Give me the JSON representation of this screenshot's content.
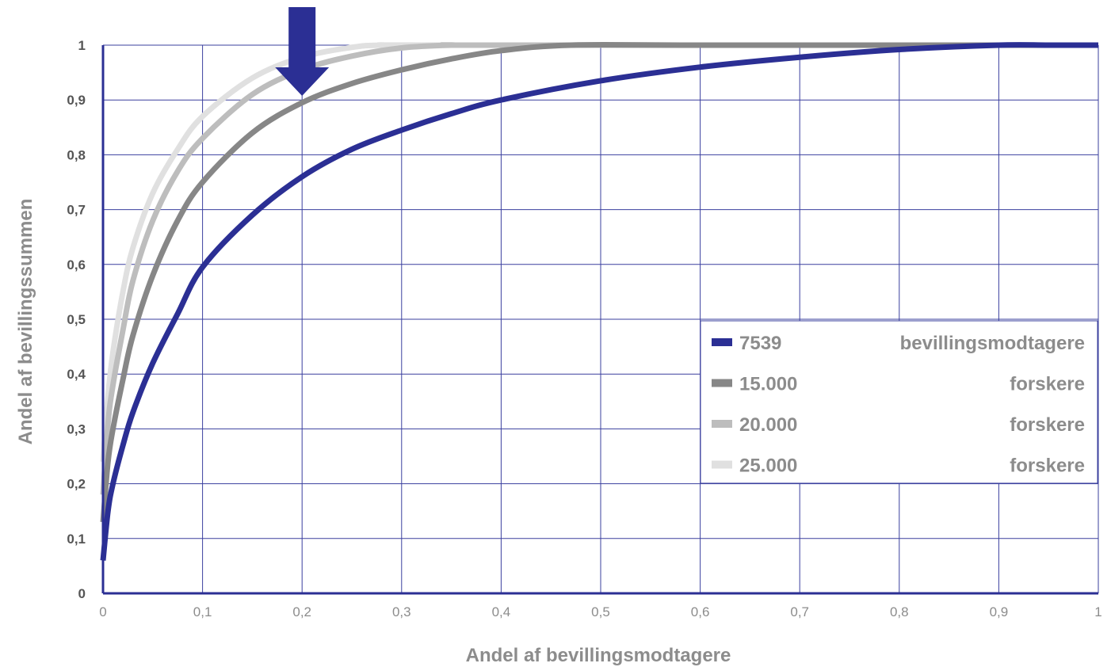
{
  "chart_data": {
    "type": "line",
    "xlabel": "Andel af bevillingsmodtagere",
    "ylabel": "Andel af bevillingssummen",
    "xlim": [
      0,
      1
    ],
    "ylim": [
      0,
      1
    ],
    "x_ticks": [
      "0",
      "0,1",
      "0,2",
      "0,3",
      "0,4",
      "0,5",
      "0,6",
      "0,7",
      "0,8",
      "0,9",
      "1"
    ],
    "y_ticks": [
      "0",
      "0,1",
      "0,2",
      "0,3",
      "0,4",
      "0,5",
      "0,6",
      "0,7",
      "0,8",
      "0,9",
      "1"
    ],
    "grid": true,
    "legend_position": "center-right",
    "annotation": {
      "type": "arrow",
      "at_x": 0.2,
      "color": "#2b2f94"
    },
    "series": [
      {
        "name": "7539",
        "suffix": "bevillingsmodtagere",
        "color": "#2b2f94",
        "text_color": "#8c8c8c",
        "x": [
          0,
          0.005,
          0.01,
          0.02,
          0.03,
          0.05,
          0.075,
          0.1,
          0.15,
          0.2,
          0.25,
          0.3,
          0.35,
          0.4,
          0.5,
          0.6,
          0.7,
          0.8,
          0.9,
          0.95,
          1
        ],
        "y": [
          0.06,
          0.15,
          0.2,
          0.27,
          0.33,
          0.42,
          0.51,
          0.595,
          0.69,
          0.76,
          0.81,
          0.845,
          0.875,
          0.9,
          0.935,
          0.96,
          0.978,
          0.992,
          1,
          1,
          1
        ]
      },
      {
        "name": "15.000",
        "suffix": "forskere",
        "color": "#878787",
        "text_color": "#8c8c8c",
        "x": [
          0,
          0.005,
          0.01,
          0.02,
          0.03,
          0.05,
          0.075,
          0.1,
          0.15,
          0.2,
          0.25,
          0.3,
          0.35,
          0.4,
          0.47,
          0.6,
          1
        ],
        "y": [
          0.13,
          0.24,
          0.3,
          0.39,
          0.47,
          0.58,
          0.68,
          0.75,
          0.84,
          0.895,
          0.93,
          0.955,
          0.975,
          0.99,
          1,
          1,
          1
        ]
      },
      {
        "name": "20.000",
        "suffix": "forskere",
        "color": "#bdbdbd",
        "text_color": "#8c8c8c",
        "x": [
          0,
          0.005,
          0.01,
          0.02,
          0.03,
          0.05,
          0.075,
          0.1,
          0.15,
          0.2,
          0.25,
          0.3,
          0.35,
          0.4,
          1
        ],
        "y": [
          0.18,
          0.31,
          0.38,
          0.48,
          0.57,
          0.68,
          0.77,
          0.83,
          0.91,
          0.955,
          0.98,
          0.995,
          1,
          1,
          1
        ]
      },
      {
        "name": "25.000",
        "suffix": "forskere",
        "color": "#e0e0e0",
        "text_color": "#8c8c8c",
        "x": [
          0,
          0.005,
          0.01,
          0.02,
          0.03,
          0.05,
          0.075,
          0.1,
          0.15,
          0.2,
          0.25,
          0.28,
          0.35,
          1
        ],
        "y": [
          0.24,
          0.36,
          0.44,
          0.55,
          0.63,
          0.73,
          0.81,
          0.87,
          0.94,
          0.978,
          0.996,
          1,
          1,
          1
        ]
      }
    ]
  }
}
